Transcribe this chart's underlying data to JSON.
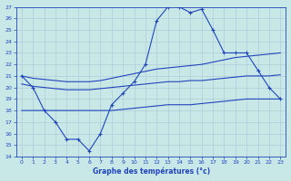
{
  "title": "Graphe des températures (°c)",
  "background_color": "#c8e8e8",
  "grid_color": "#b0ccd8",
  "line_color": "#2244bb",
  "xlim": [
    -0.5,
    23.5
  ],
  "ylim": [
    14,
    27
  ],
  "yticks": [
    14,
    15,
    16,
    17,
    18,
    19,
    20,
    21,
    22,
    23,
    24,
    25,
    26,
    27
  ],
  "xticks": [
    0,
    1,
    2,
    3,
    4,
    5,
    6,
    7,
    8,
    9,
    10,
    11,
    12,
    13,
    14,
    15,
    16,
    17,
    18,
    19,
    20,
    21,
    22,
    23
  ],
  "series_main": [
    21,
    20,
    18,
    17,
    15.5,
    15.5,
    14.5,
    16,
    18.5,
    19.5,
    20.5,
    22,
    25.8,
    27,
    27,
    26.5,
    26.8,
    25,
    23,
    23,
    23,
    21.5,
    20,
    19
  ],
  "series_top": [
    21,
    20.8,
    20.7,
    20.6,
    20.5,
    20.5,
    20.5,
    20.6,
    20.8,
    21.0,
    21.2,
    21.4,
    21.6,
    21.7,
    21.8,
    21.9,
    22.0,
    22.2,
    22.4,
    22.6,
    22.7,
    22.8,
    22.9,
    23.0
  ],
  "series_mid": [
    20.3,
    20.1,
    20.0,
    19.9,
    19.8,
    19.8,
    19.8,
    19.9,
    20.0,
    20.1,
    20.2,
    20.3,
    20.4,
    20.5,
    20.5,
    20.6,
    20.6,
    20.7,
    20.8,
    20.9,
    21.0,
    21.0,
    21.0,
    21.1
  ],
  "series_bot": [
    18.0,
    18.0,
    18.0,
    18.0,
    18.0,
    18.0,
    18.0,
    18.0,
    18.0,
    18.1,
    18.2,
    18.3,
    18.4,
    18.5,
    18.5,
    18.5,
    18.6,
    18.7,
    18.8,
    18.9,
    19.0,
    19.0,
    19.0,
    19.0
  ]
}
